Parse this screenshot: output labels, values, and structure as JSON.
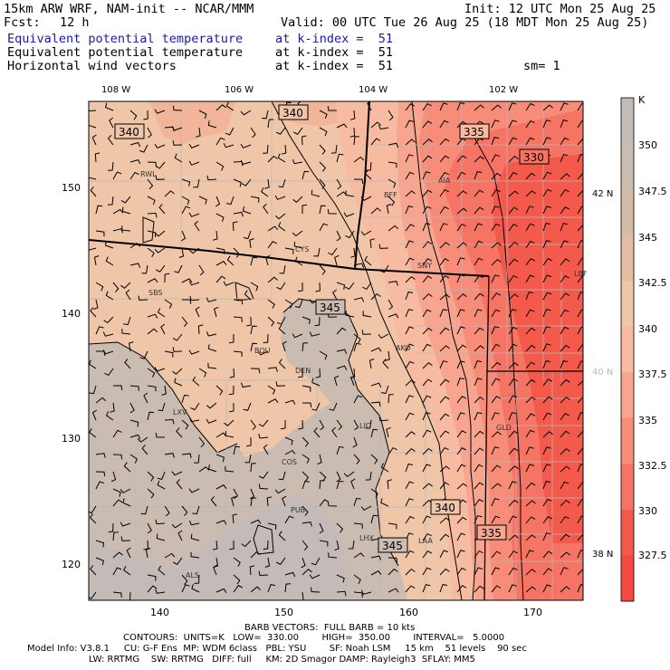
{
  "header": {
    "model": "15km ARW WRF, NAM-init -- NCAR/MMM",
    "fcst_label": "Fcst:",
    "fcst_value": "12 h",
    "init": "Init: 12 UTC Mon 25 Aug 25",
    "valid": "Valid: 00 UTC Tue 26 Aug 25 (18 MDT Mon 25 Aug 25)",
    "fields": [
      {
        "name": "Equivalent potential temperature",
        "level": "at k-index =  51"
      },
      {
        "name": "Equivalent potential temperature",
        "level": "at k-index =  51"
      },
      {
        "name": "Horizontal wind vectors",
        "level": "at k-index =  51"
      }
    ],
    "smoothing": "sm= 1"
  },
  "axes": {
    "top": [
      "108 W",
      "106 W",
      "104 W",
      "102 W"
    ],
    "left": [
      "150",
      "140",
      "130",
      "120"
    ],
    "bottom": [
      "140",
      "150",
      "160",
      "170"
    ],
    "right_lat": [
      "42 N",
      "40 N",
      "38 N"
    ]
  },
  "cities": [
    "RWL",
    "BFF",
    "AIA",
    "CYS",
    "SNY",
    "SBS",
    "BOU",
    "DEN",
    "AKO",
    "LXV",
    "LIC",
    "GLD",
    "COS",
    "PUB",
    "LHX",
    "LAA",
    "ALS",
    "LBF"
  ],
  "contour_labels": [
    "340",
    "340",
    "335",
    "330",
    "345",
    "340",
    "345",
    "335"
  ],
  "colorbar": {
    "unit": "K",
    "ticks": [
      "350",
      "347.5",
      "345",
      "342.5",
      "340",
      "337.5",
      "335",
      "332.5",
      "330",
      "327.5"
    ],
    "colors": [
      "#c2bcb8",
      "#cbbcb2",
      "#d4bba8",
      "#e3bda1",
      "#f0c6a8",
      "#f6bba0",
      "#f7a58e",
      "#f78d78",
      "#f57463",
      "#f45a4b",
      "#f44a40"
    ]
  },
  "footer": {
    "barb": "BARB VECTORS:  FULL BARB = 10 kts",
    "contours": "CONTOURS:  UNITS=K   LOW=  330.00        HIGH=  350.00        INTERVAL=   5.0000",
    "model_info": "Model Info: V3.8.1     CU: G-F Ens  MP: WDM 6class   PBL: YSU        SF: Noah LSM     15 km    51 levels    90 sec",
    "physics": "LW: RRTMG    SW: RRTMG   DIFF: full     KM: 2D Smagor DAMP: Rayleigh3  SFLAY: MM5"
  }
}
